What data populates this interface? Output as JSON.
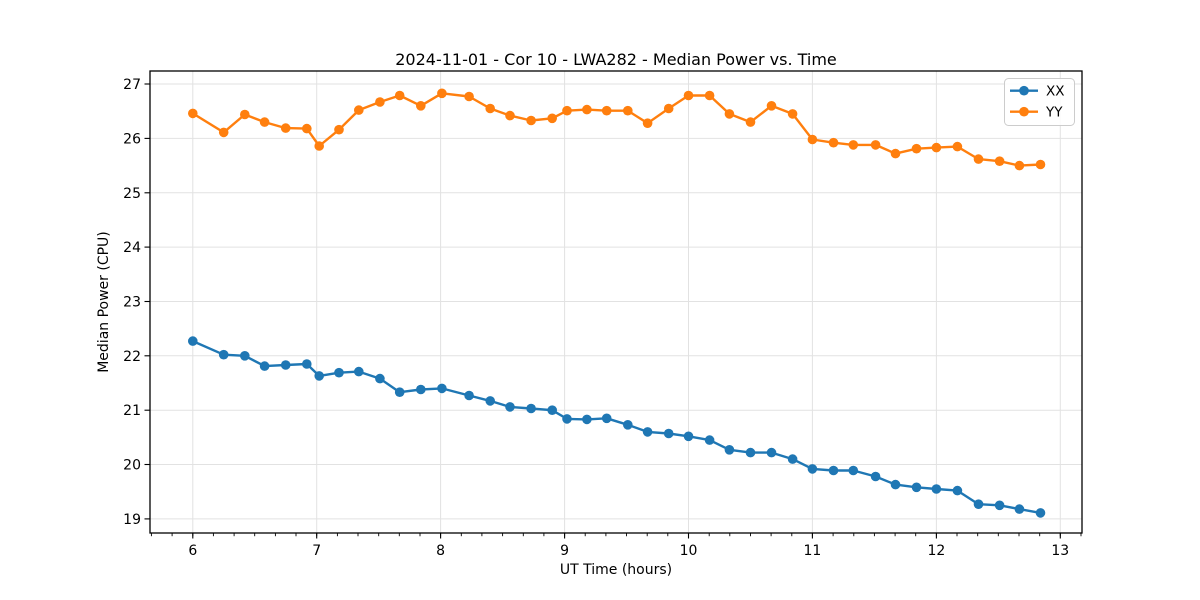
{
  "figure": {
    "background": "#ffffff"
  },
  "chart_data": {
    "type": "line",
    "title": "2024-11-01 - Cor 10 - LWA282 - Median Power vs. Time",
    "xlabel": "UT Time (hours)",
    "ylabel": "Median Power (CPU)",
    "xlim": [
      5.655,
      13.175
    ],
    "ylim": [
      18.74,
      27.24
    ],
    "xticks": [
      6,
      7,
      8,
      9,
      10,
      11,
      12,
      13
    ],
    "yticks": [
      19,
      20,
      21,
      22,
      23,
      24,
      25,
      26,
      27
    ],
    "x_minor_step": 0.1666667,
    "grid": true,
    "grid_color": "#e2e2e2",
    "axis_color": "#000000",
    "legend_position": "upper right",
    "marker": "o",
    "x": [
      6.0,
      6.25,
      6.42,
      6.58,
      6.75,
      6.92,
      7.02,
      7.18,
      7.34,
      7.51,
      7.67,
      7.84,
      8.01,
      8.23,
      8.4,
      8.56,
      8.73,
      8.9,
      9.02,
      9.18,
      9.34,
      9.51,
      9.67,
      9.84,
      10.0,
      10.17,
      10.33,
      10.5,
      10.67,
      10.84,
      11.0,
      11.17,
      11.33,
      11.51,
      11.67,
      11.84,
      12.0,
      12.17,
      12.34,
      12.51,
      12.67,
      12.84
    ],
    "series": [
      {
        "name": "XX",
        "color": "#1f77b4",
        "values": [
          22.27,
          22.02,
          22.0,
          21.81,
          21.83,
          21.85,
          21.63,
          21.69,
          21.71,
          21.58,
          21.33,
          21.38,
          21.4,
          21.27,
          21.17,
          21.06,
          21.03,
          21.0,
          20.84,
          20.83,
          20.85,
          20.73,
          20.6,
          20.57,
          20.52,
          20.45,
          20.27,
          20.22,
          20.22,
          20.1,
          19.92,
          19.89,
          19.89,
          19.78,
          19.63,
          19.58,
          19.55,
          19.52,
          19.27,
          19.25,
          19.18,
          19.11
        ]
      },
      {
        "name": "YY",
        "color": "#ff7f0e",
        "values": [
          26.46,
          26.11,
          26.44,
          26.3,
          26.19,
          26.18,
          25.86,
          26.16,
          26.52,
          26.67,
          26.79,
          26.6,
          26.83,
          26.77,
          26.55,
          26.42,
          26.33,
          26.37,
          26.51,
          26.53,
          26.51,
          26.51,
          26.28,
          26.55,
          26.79,
          26.79,
          26.45,
          26.3,
          26.6,
          26.45,
          25.98,
          25.92,
          25.88,
          25.88,
          25.72,
          25.81,
          25.83,
          25.85,
          25.62,
          25.58,
          25.5,
          25.52
        ]
      }
    ]
  }
}
